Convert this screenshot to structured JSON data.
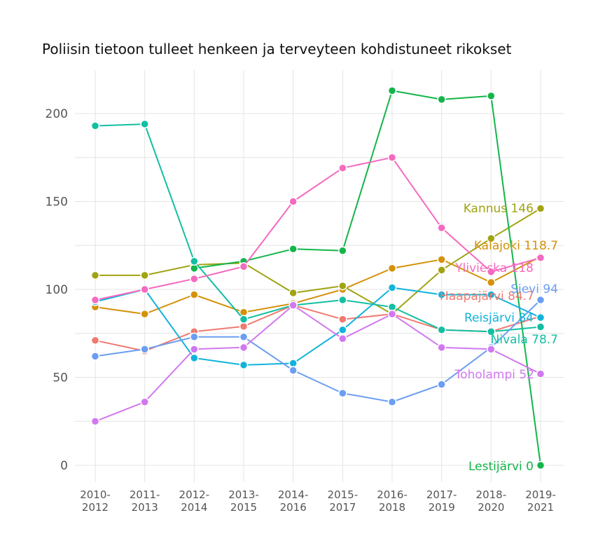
{
  "chart_data": {
    "type": "line",
    "title": "Poliisin tietoon tulleet henkeen ja terveyteen kohdistuneet rikokset",
    "xlabel": "",
    "ylabel": "",
    "categories": [
      [
        "2010-",
        "2012"
      ],
      [
        "2011-",
        "2013"
      ],
      [
        "2012-",
        "2014"
      ],
      [
        "2013-",
        "2015"
      ],
      [
        "2014-",
        "2016"
      ],
      [
        "2015-",
        "2017"
      ],
      [
        "2016-",
        "2018"
      ],
      [
        "2017-",
        "2019"
      ],
      [
        "2018-",
        "2020"
      ],
      [
        "2019-",
        "2021"
      ]
    ],
    "ylim": [
      -10,
      224
    ],
    "yticks": [
      0,
      50,
      100,
      150,
      200
    ],
    "grid": true,
    "legend": "end-labels",
    "series": [
      {
        "name": "Haapajärvi",
        "end_label": "Haapajärvi 84.7",
        "color": "#F07A70",
        "values": [
          71,
          65,
          76,
          79,
          91,
          83,
          86,
          77,
          76,
          84.7
        ]
      },
      {
        "name": "Kalajoki",
        "end_label": "Kalajoki 118.7",
        "color": "#D4920A",
        "values": [
          90,
          86,
          97,
          87,
          92,
          100,
          112,
          117,
          104,
          118.7
        ]
      },
      {
        "name": "Kannus",
        "end_label": "Kannus 146",
        "color": "#A0A412",
        "values": [
          108,
          108,
          114,
          115,
          98,
          102,
          86,
          111,
          129,
          146
        ]
      },
      {
        "name": "Lestijärvi",
        "end_label": "Lestijärvi 0",
        "color": "#14B54A",
        "values": [
          null,
          null,
          112,
          116,
          123,
          122,
          213,
          208,
          210,
          0
        ]
      },
      {
        "name": "Nivala",
        "end_label": "Nivala 78.7",
        "color": "#12BFA2",
        "values": [
          193,
          194,
          116,
          83,
          91,
          94,
          90,
          77,
          76,
          78.7
        ]
      },
      {
        "name": "Reisjärvi",
        "end_label": "Reisjärvi 84",
        "color": "#12B3DB",
        "values": [
          93,
          100,
          61,
          57,
          58,
          77,
          101,
          97,
          97,
          84
        ]
      },
      {
        "name": "Sievi",
        "end_label": "Sievi 94",
        "color": "#6B9EF2",
        "values": [
          62,
          66,
          73,
          73,
          54,
          41,
          36,
          46,
          67,
          94
        ]
      },
      {
        "name": "Toholampi",
        "end_label": "Toholampi 52",
        "color": "#D178F0",
        "values": [
          25,
          36,
          66,
          67,
          91,
          72,
          86,
          67,
          66,
          52
        ]
      },
      {
        "name": "Ylivieska",
        "end_label": "Ylivieska 118",
        "color": "#F56ABF",
        "values": [
          94,
          100,
          106,
          113,
          150,
          169,
          175,
          135,
          110,
          118
        ]
      }
    ]
  }
}
